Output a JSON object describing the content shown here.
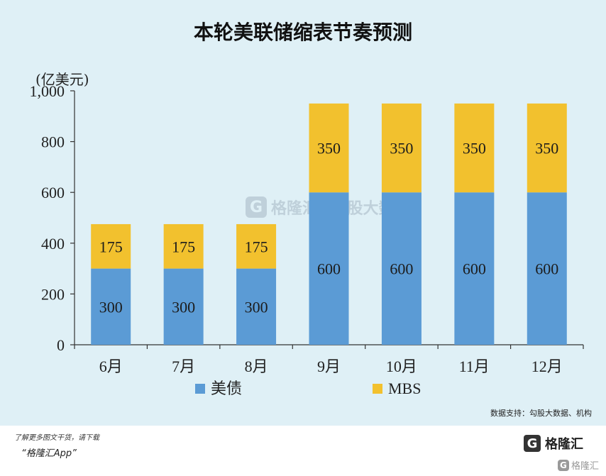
{
  "chart_data": {
    "type": "bar",
    "stacked": true,
    "title": "本轮美联储缩表节奏预测",
    "unit_label": "(亿美元)",
    "categories": [
      "6月",
      "7月",
      "8月",
      "9月",
      "10月",
      "11月",
      "12月"
    ],
    "series": [
      {
        "name": "美债",
        "color": "#5b9bd5",
        "values": [
          300,
          300,
          300,
          600,
          600,
          600,
          600
        ]
      },
      {
        "name": "MBS",
        "color": "#f2c12e",
        "values": [
          175,
          175,
          175,
          350,
          350,
          350,
          350
        ]
      }
    ],
    "ylim": [
      0,
      1000
    ],
    "yticks": [
      0,
      200,
      400,
      600,
      800,
      1000
    ],
    "ytick_labels": [
      "0",
      "200",
      "400",
      "600",
      "800",
      "1,000"
    ],
    "grid": false,
    "legend_position": "bottom"
  },
  "source": "数据支持：勾股大数据、机构",
  "watermark": {
    "logo_letter": "G",
    "brand": "格隆汇",
    "partner": "勾股大数据"
  },
  "footer": {
    "promo_line1": "了解更多图文干货，请下载",
    "promo_line2": "“格隆汇App”",
    "brand_logo_letter": "G",
    "brand_name": "格隆汇",
    "corner_logo_letter": "G",
    "corner_brand": "格隆汇"
  },
  "colors": {
    "background": "#dff0f6",
    "us_treasury": "#5b9bd5",
    "mbs": "#f2c12e"
  }
}
